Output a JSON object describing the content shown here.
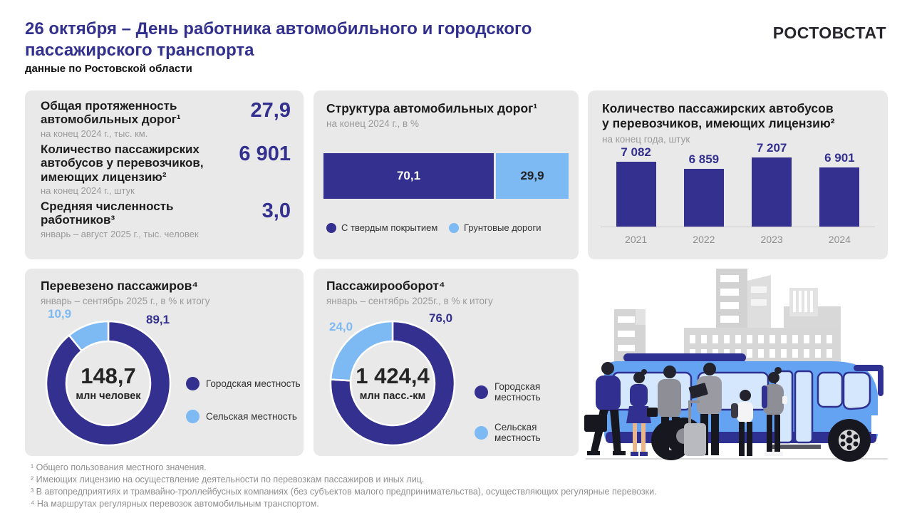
{
  "header": {
    "title_line1": "26 октября – День работника автомобильного и городского",
    "title_line2": "пассажирского транспорта",
    "subtitle": "данные по Ростовской области",
    "logo": "РОСТОВСТАТ"
  },
  "colors": {
    "primary_dark": "#33308F",
    "primary_light": "#7DB9F3",
    "title_blue": "#32308E",
    "card_bg": "#E9E9E9",
    "subtitle_gray": "#9A9A9A"
  },
  "kpi_card": {
    "items": [
      {
        "label": "Общая протяженность автомобильных дорог¹",
        "value": "27,9",
        "note": "на конец 2024 г.,  тыс. км."
      },
      {
        "label": "Количество пассажирских автобусов у перевозчиков, имеющих лицензию²",
        "value": "6 901",
        "note": "на конец 2024 г.,  штук"
      },
      {
        "label": "Средняя численность работников³",
        "value": "3,0",
        "note": "январь – август 2025 г.,  тыс. человек"
      }
    ]
  },
  "roads_card": {
    "title": "Структура автомобильных дорог¹",
    "subtitle": "на конец 2024 г.,  в %"
  },
  "buses_card": {
    "title_line1": "Количество пассажирских автобусов",
    "title_line2": "у перевозчиков, имеющих лицензию²",
    "subtitle": "на конец  года, штук"
  },
  "passengers_card": {
    "title": "Перевезено пассажиров⁴",
    "subtitle": "январь – сентябрь 2025 г., в % к итогу",
    "center_value": "148,7",
    "center_unit": "млн  человек"
  },
  "turnover_card": {
    "title": "Пассажирооборот⁴",
    "subtitle": "январь – сентябрь 2025г., в % к итогу",
    "center_value": "1 424,4",
    "center_unit": "млн  пасс.-км"
  },
  "legend": {
    "urban": "Городская местность",
    "rural": "Сельская местность",
    "paved": "С твердым  покрытием",
    "unpaved": "Грунтовые  дороги"
  },
  "footnotes": [
    "¹ Общего  пользования местного значения.",
    "² Имеющих лицензию на осуществление  деятельности по перевозкам пассажиров и иных лиц.",
    "³ В автопредприятиях и трамвайно-троллейбусных компаниях (без субъектов малого предпринимательства), осуществляющих  регулярные перевозки.",
    "⁴ На маршрутах  регулярных перевозок автомобильным транспортом."
  ],
  "chart_data": [
    {
      "type": "bar",
      "variant": "stacked-horizontal-100",
      "title": "Структура автомобильных дорог",
      "categories": [
        "С твердым покрытием",
        "Грунтовые дороги"
      ],
      "values": [
        70.1,
        29.9
      ],
      "display_values": [
        "70,1",
        "29,9"
      ],
      "colors": [
        "#33308F",
        "#7DB9F3"
      ],
      "unit": "% на конец 2024 г.",
      "legend_position": "bottom"
    },
    {
      "type": "bar",
      "title": "Количество пассажирских автобусов у перевозчиков, имеющих лицензию",
      "categories": [
        "2021",
        "2022",
        "2023",
        "2024"
      ],
      "values": [
        7082,
        6859,
        7207,
        6901
      ],
      "display_values": [
        "7 082",
        "6 859",
        "7 207",
        "6 901"
      ],
      "color": "#33308F",
      "ylim": [
        5000,
        7400
      ],
      "unit": "штук на конец года",
      "grid": false
    },
    {
      "type": "pie",
      "variant": "donut",
      "title": "Перевезено пассажиров, январь – сентябрь 2025 г., в % к итогу",
      "labels": [
        "Городская местность",
        "Сельская местность"
      ],
      "values": [
        89.1,
        10.9
      ],
      "display_values": [
        "89,1",
        "10,9"
      ],
      "colors": [
        "#33308F",
        "#7DB9F3"
      ],
      "center_value": "148,7",
      "center_unit": "млн человек",
      "legend_position": "right"
    },
    {
      "type": "pie",
      "variant": "donut",
      "title": "Пассажирооборот, январь – сентябрь 2025 г., в % к итогу",
      "labels": [
        "Городская местность",
        "Сельская местность"
      ],
      "values": [
        76.0,
        24.0
      ],
      "display_values": [
        "76,0",
        "24,0"
      ],
      "colors": [
        "#33308F",
        "#7DB9F3"
      ],
      "center_value": "1 424,4",
      "center_unit": "млн пасс.-км",
      "legend_position": "right"
    }
  ]
}
